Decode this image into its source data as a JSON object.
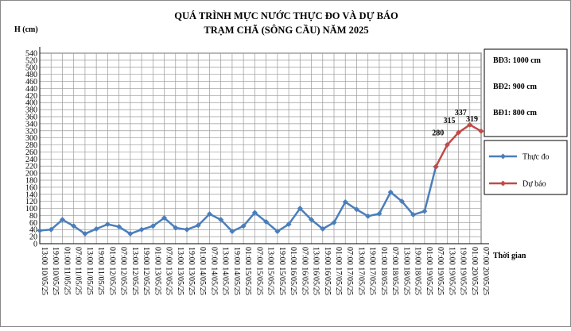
{
  "chart_data": {
    "type": "line",
    "title": "QUÁ TRÌNH MỰC NƯỚC THỰC ĐO VÀ DỰ BÁO",
    "subtitle": "TRẠM CHÃ (SÔNG CẦU) NĂM 2025",
    "y_label": "H (cm)",
    "x_label": "Thời gian",
    "annotations": [
      "BĐ3: 1000 cm",
      "BĐ2: 900 cm",
      "BĐ1: 800 cm"
    ],
    "categories": [
      "13:00 10/05/25",
      "19:00 10/05/25",
      "01:00 11/05/25",
      "07:00 11/05/25",
      "13:00 11/05/25",
      "19:00 11/05/25",
      "01:00 12/05/25",
      "07:00 12/05/25",
      "13:00 12/05/25",
      "19:00 12/05/25",
      "01:00 13/05/25",
      "07:00 13/05/25",
      "13:00 13/05/25",
      "19:00 13/05/25",
      "01:00 14/05/25",
      "07:00 14/05/25",
      "13:00 14/05/25",
      "19:00 14/05/25",
      "01:00 15/05/25",
      "07:00 15/05/25",
      "13:00 15/05/25",
      "19:00 15/05/25",
      "01:00 16/05/25",
      "07:00 16/05/25",
      "13:00 16/05/25",
      "19:00 16/05/25",
      "01:00 17/05/25",
      "07:00 17/05/25",
      "13:00 17/05/25",
      "19:00 17/05/25",
      "01:00 18/05/25",
      "07:00 18/05/25",
      "13:00 18/05/25",
      "19:00 18/05/25",
      "01:00 19/05/25",
      "07:00 19/05/25",
      "13:00 19/05/25",
      "19:00 19/05/25",
      "01:00 20/05/25",
      "07:00 20/05/25"
    ],
    "series": [
      {
        "name": "Thực đo",
        "color": "#4a7ebb",
        "values": [
          37,
          40,
          68,
          50,
          28,
          42,
          55,
          48,
          28,
          40,
          50,
          73,
          45,
          40,
          52,
          84,
          68,
          35,
          50,
          88,
          62,
          35,
          55,
          100,
          68,
          42,
          60,
          118,
          97,
          78,
          85,
          146,
          120,
          82,
          92,
          218,
          null,
          null,
          null,
          null
        ]
      },
      {
        "name": "Dự báo",
        "color": "#be4b48",
        "values": [
          null,
          null,
          null,
          null,
          null,
          null,
          null,
          null,
          null,
          null,
          null,
          null,
          null,
          null,
          null,
          null,
          null,
          null,
          null,
          null,
          null,
          null,
          null,
          null,
          null,
          null,
          null,
          null,
          null,
          null,
          null,
          null,
          null,
          null,
          null,
          218,
          280,
          315,
          337,
          319
        ],
        "labeled_indices_values": [
          280,
          315,
          337,
          319
        ]
      }
    ],
    "ylim": [
      0,
      540
    ],
    "yticks": [
      0,
      20,
      40,
      60,
      80,
      100,
      120,
      140,
      160,
      180,
      200,
      220,
      240,
      260,
      280,
      300,
      320,
      340,
      360,
      380,
      400,
      420,
      440,
      460,
      480,
      500,
      520,
      540
    ],
    "grid": true
  }
}
